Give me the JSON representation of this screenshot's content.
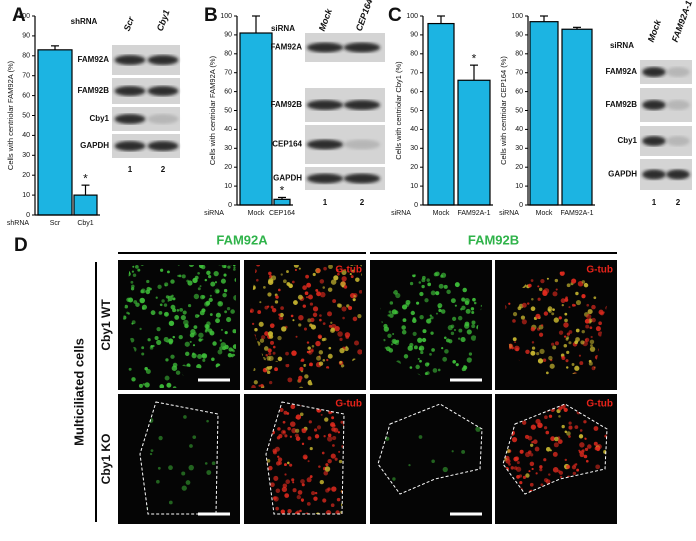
{
  "panel_labels": [
    "A",
    "B",
    "C",
    "D"
  ],
  "chart_data": [
    {
      "type": "bar",
      "ylabel": "Cells with centriolar FAM92A (%)",
      "group_label": "shRNA",
      "categories": [
        "Scr",
        "Cby1"
      ],
      "values": [
        83,
        10
      ],
      "errors": [
        2,
        5
      ],
      "annotation": "*",
      "color": "#1cb4e2",
      "ylim": [
        0,
        100
      ],
      "yticks": [
        0,
        10,
        20,
        30,
        40,
        50,
        60,
        70,
        80,
        90,
        100
      ]
    },
    {
      "type": "bar",
      "ylabel": "Cells with centriolar FAM92A (%)",
      "group_label": "siRNA",
      "categories": [
        "Mock",
        "CEP164"
      ],
      "values": [
        91,
        3
      ],
      "errors": [
        9,
        1
      ],
      "annotation": "*",
      "color": "#1cb4e2",
      "ylim": [
        0,
        100
      ],
      "yticks": [
        0,
        10,
        20,
        30,
        40,
        50,
        60,
        70,
        80,
        90,
        100
      ]
    },
    {
      "type": "bar",
      "ylabel": "Cells with centriolar Cby1 (%)",
      "group_label": "siRNA",
      "categories": [
        "Mock",
        "FAM92A-1"
      ],
      "values": [
        96,
        66
      ],
      "errors": [
        4,
        8
      ],
      "annotation": "*",
      "color": "#1cb4e2",
      "ylim": [
        0,
        100
      ],
      "yticks": [
        0,
        10,
        20,
        30,
        40,
        50,
        60,
        70,
        80,
        90,
        100
      ]
    },
    {
      "type": "bar",
      "ylabel": "Cells with centriolar CEP164 (%)",
      "group_label": "siRNA",
      "categories": [
        "Mock",
        "FAM92A-1"
      ],
      "values": [
        97,
        93
      ],
      "errors": [
        3,
        1
      ],
      "color": "#1cb4e2",
      "ylim": [
        0,
        100
      ],
      "yticks": [
        0,
        10,
        20,
        30,
        40,
        50,
        60,
        70,
        80,
        90,
        100
      ]
    }
  ],
  "blots": [
    {
      "treatment": "shRNA",
      "lanes": [
        "Scr",
        "Cby1"
      ],
      "rows": [
        "FAM92A",
        "FAM92B",
        "Cby1",
        "GAPDH"
      ],
      "lane_numbers": [
        "1",
        "2"
      ]
    },
    {
      "treatment": "siRNA",
      "lanes": [
        "Mock",
        "CEP164"
      ],
      "rows": [
        "FAM92A",
        "FAM92B",
        "CEP164",
        "GAPDH"
      ],
      "lane_numbers": [
        "1",
        "2"
      ]
    },
    {
      "treatment": "siRNA",
      "lanes": [
        "Mock",
        "FAM92A-1"
      ],
      "rows": [
        "FAM92A",
        "FAM92B",
        "Cby1",
        "GAPDH"
      ],
      "lane_numbers": [
        "1",
        "2"
      ]
    }
  ],
  "microscopy": {
    "columns": [
      "FAM92A",
      "FAM92B"
    ],
    "side_label": "Multiciliated cells",
    "rows": [
      "Cby1 WT",
      "Cby1 KO"
    ],
    "overlay_label": "G-tub"
  }
}
